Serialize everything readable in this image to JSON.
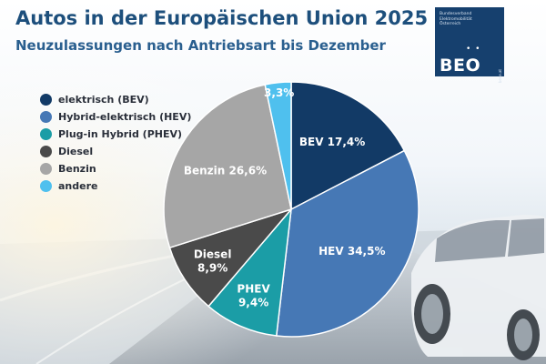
{
  "header": {
    "title": "Autos in der Europäischen Union 2025",
    "subtitle": "Neuzulassungen nach Antriebsart bis Dezember"
  },
  "logo": {
    "org_text": "Bundesverband\nElektromobilität\nÖsterreich",
    "dots": "• •",
    "name": "BEO",
    "url": "beoe.at"
  },
  "colors": {
    "bev": "#123a66",
    "hev": "#4678b5",
    "phev": "#1b9da6",
    "diesel": "#4a4a4a",
    "benzin": "#a6a6a6",
    "andere": "#4fc0ee"
  },
  "chart_data": {
    "type": "pie",
    "title": "Autos in der Europäischen Union 2025",
    "subtitle": "Neuzulassungen nach Antriebsart bis Dezember",
    "legend_position": "left",
    "unit": "%",
    "slices": [
      {
        "legend": "elektrisch (BEV)",
        "label": [
          "BEV 17,4%"
        ],
        "value": 17.4,
        "color_key": "bev"
      },
      {
        "legend": "Hybrid-elektrisch (HEV)",
        "label": [
          "HEV 34,5%"
        ],
        "value": 34.5,
        "color_key": "hev"
      },
      {
        "legend": "Plug-in Hybrid (PHEV)",
        "label": [
          "PHEV",
          "9,4%"
        ],
        "value": 9.4,
        "color_key": "phev"
      },
      {
        "legend": "Diesel",
        "label": [
          "Diesel",
          "8,9%"
        ],
        "value": 8.9,
        "color_key": "diesel"
      },
      {
        "legend": "Benzin",
        "label": [
          "Benzin 26,6%"
        ],
        "value": 26.6,
        "color_key": "benzin"
      },
      {
        "legend": "andere",
        "label": [
          "3,3%"
        ],
        "value": 3.3,
        "color_key": "andere"
      }
    ]
  }
}
